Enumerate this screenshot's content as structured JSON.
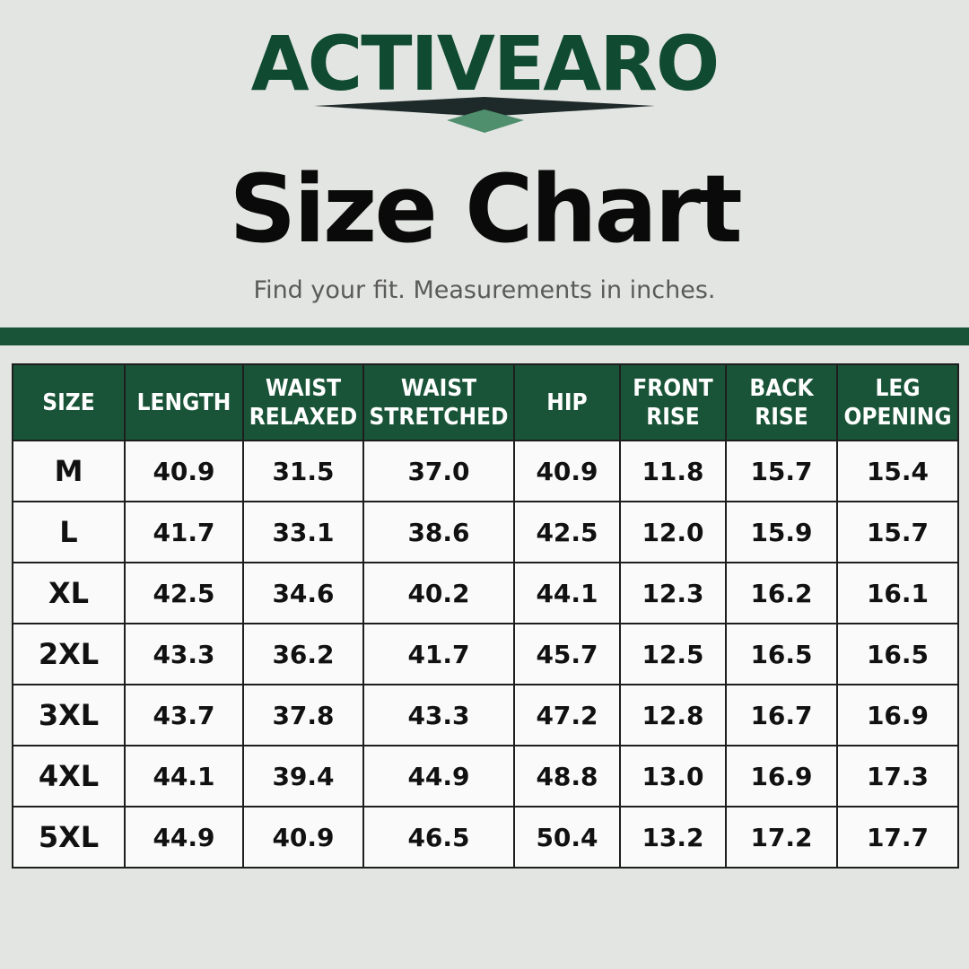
{
  "header": {
    "brand": "ACTIVEARO",
    "title": "Size Chart",
    "subtitle": "Find your fit. Measurements in inches."
  },
  "table": {
    "headers": [
      [
        "SIZE"
      ],
      [
        "LENGTH"
      ],
      [
        "WAIST",
        "RELAXED"
      ],
      [
        "WAIST",
        "STRETCHED"
      ],
      [
        "HIP"
      ],
      [
        "FRONT",
        "RISE"
      ],
      [
        "BACK",
        "RISE"
      ],
      [
        "LEG",
        "OPENING"
      ]
    ],
    "rows": [
      [
        "M",
        "40.9",
        "31.5",
        "37.0",
        "40.9",
        "11.8",
        "15.7",
        "15.4"
      ],
      [
        "L",
        "41.7",
        "33.1",
        "38.6",
        "42.5",
        "12.0",
        "15.9",
        "15.7"
      ],
      [
        "XL",
        "42.5",
        "34.6",
        "40.2",
        "44.1",
        "12.3",
        "16.2",
        "16.1"
      ],
      [
        "2XL",
        "43.3",
        "36.2",
        "41.7",
        "45.7",
        "12.5",
        "16.5",
        "16.5"
      ],
      [
        "3XL",
        "43.7",
        "37.8",
        "43.3",
        "47.2",
        "12.8",
        "16.7",
        "16.9"
      ],
      [
        "4XL",
        "44.1",
        "39.4",
        "44.9",
        "48.8",
        "13.0",
        "16.9",
        "17.3"
      ],
      [
        "5XL",
        "44.9",
        "40.9",
        "46.5",
        "50.4",
        "13.2",
        "17.2",
        "17.7"
      ]
    ]
  }
}
